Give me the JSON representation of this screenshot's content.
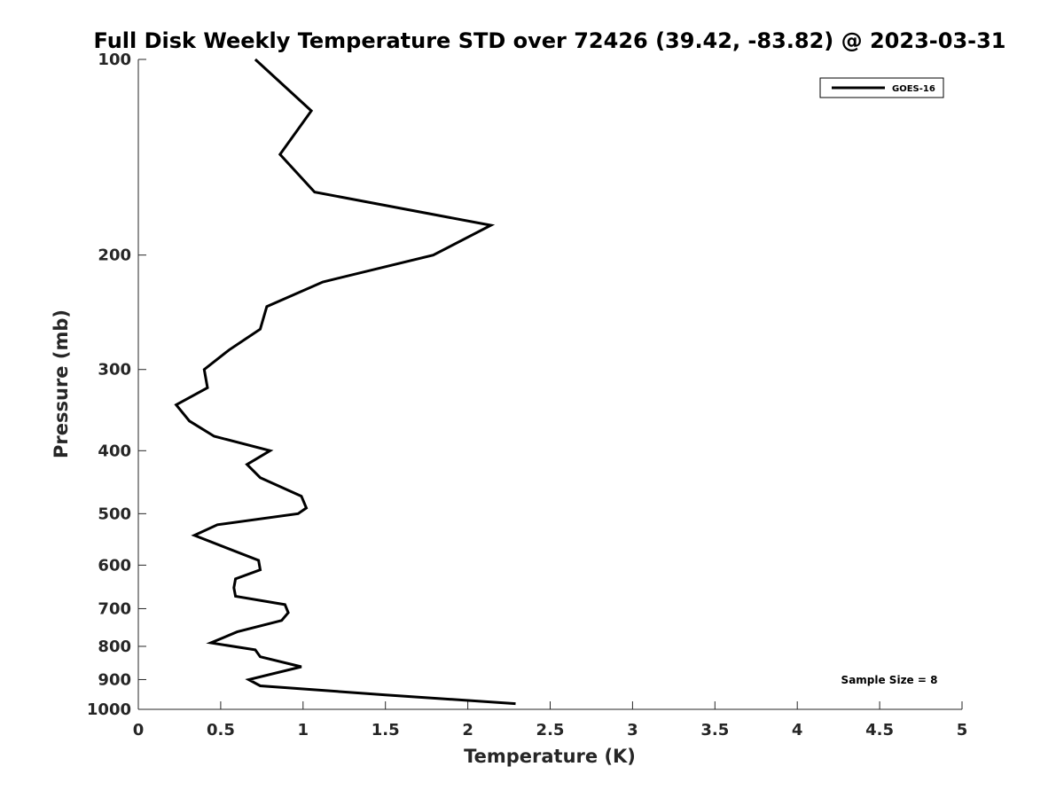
{
  "chart_data": {
    "type": "line",
    "title": "Full Disk Weekly Temperature STD over 72426 (39.42, -83.82) @ 2023-03-31",
    "xlabel": "Temperature (K)",
    "ylabel": "Pressure (mb)",
    "xlim": [
      0,
      5
    ],
    "ylim": [
      100,
      1000
    ],
    "y_scale": "log",
    "y_reversed": true,
    "x_ticks": [
      "0",
      "0.5",
      "1",
      "1.5",
      "2",
      "2.5",
      "3",
      "3.5",
      "4",
      "4.5",
      "5"
    ],
    "y_ticks": [
      "100",
      "200",
      "300",
      "400",
      "500",
      "600",
      "700",
      "800",
      "900",
      "1000"
    ],
    "grid": false,
    "legend_position": "top-right",
    "annotation": "Sample Size = 8",
    "series": [
      {
        "name": "GOES-16",
        "color": "#000000",
        "x": [
          0.71,
          1.05,
          0.86,
          1.07,
          2.14,
          1.79,
          1.12,
          0.78,
          0.74,
          0.55,
          0.4,
          0.42,
          0.23,
          0.31,
          0.46,
          0.8,
          0.66,
          0.74,
          0.99,
          1.02,
          0.97,
          0.48,
          0.34,
          0.73,
          0.74,
          0.59,
          0.58,
          0.59,
          0.89,
          0.91,
          0.87,
          0.6,
          0.44,
          0.71,
          0.74,
          0.99,
          0.67,
          0.74,
          1.5,
          2.29
        ],
        "y": [
          100,
          120,
          140,
          160,
          180,
          200,
          220,
          240,
          260,
          280,
          300,
          320,
          340,
          360,
          380,
          400,
          420,
          440,
          470,
          490,
          500,
          520,
          540,
          590,
          610,
          630,
          650,
          670,
          690,
          710,
          730,
          760,
          790,
          810,
          830,
          860,
          900,
          920,
          950,
          980
        ]
      }
    ]
  }
}
